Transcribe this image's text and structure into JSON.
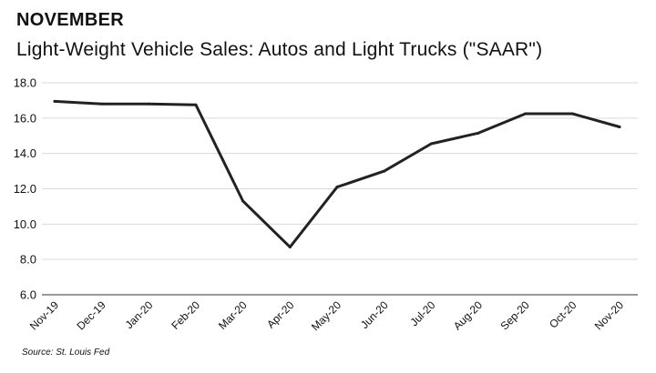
{
  "header": {
    "kicker": "NOVEMBER",
    "title": "Light-Weight Vehicle Sales: Autos and Light Trucks (\"SAAR\")"
  },
  "source": "Source: St. Louis Fed",
  "colors": {
    "line": "#222222",
    "grid": "#d9d9d9",
    "axis": "#333333"
  },
  "chart_data": {
    "type": "line",
    "title": "Light-Weight Vehicle Sales: Autos and Light Trucks (\"SAAR\")",
    "xlabel": "",
    "ylabel": "",
    "ylim": [
      6.0,
      18.0
    ],
    "yticks": [
      "6.0",
      "8.0",
      "10.0",
      "12.0",
      "14.0",
      "16.0",
      "18.0"
    ],
    "grid": true,
    "categories": [
      "Nov-19",
      "Dec-19",
      "Jan-20",
      "Feb-20",
      "Mar-20",
      "Apr-20",
      "May-20",
      "Jun-20",
      "Jul-20",
      "Aug-20",
      "Sep-20",
      "Oct-20",
      "Nov-20"
    ],
    "series": [
      {
        "name": "Light-Weight Vehicle Sales",
        "values": [
          16.95,
          16.8,
          16.8,
          16.75,
          11.3,
          8.7,
          12.1,
          13.0,
          14.55,
          15.15,
          16.25,
          16.25,
          15.5
        ]
      }
    ]
  }
}
